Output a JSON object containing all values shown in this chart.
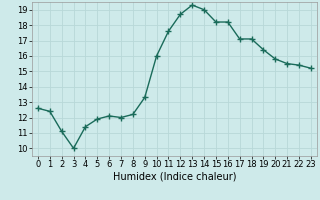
{
  "x": [
    0,
    1,
    2,
    3,
    4,
    5,
    6,
    7,
    8,
    9,
    10,
    11,
    12,
    13,
    14,
    15,
    16,
    17,
    18,
    19,
    20,
    21,
    22,
    23
  ],
  "y": [
    12.6,
    12.4,
    11.1,
    10.0,
    11.4,
    11.9,
    12.1,
    12.0,
    12.2,
    13.3,
    16.0,
    17.6,
    18.7,
    19.3,
    19.0,
    18.2,
    18.2,
    17.1,
    17.1,
    16.4,
    15.8,
    15.5,
    15.4,
    15.2
  ],
  "line_color": "#1a6b5a",
  "marker": "+",
  "marker_size": 4,
  "marker_linewidth": 1.0,
  "bg_color": "#ceeaea",
  "grid_color": "#b8d8d8",
  "xlabel": "Humidex (Indice chaleur)",
  "xlim": [
    -0.5,
    23.5
  ],
  "ylim": [
    9.5,
    19.5
  ],
  "yticks": [
    10,
    11,
    12,
    13,
    14,
    15,
    16,
    17,
    18,
    19
  ],
  "xticks": [
    0,
    1,
    2,
    3,
    4,
    5,
    6,
    7,
    8,
    9,
    10,
    11,
    12,
    13,
    14,
    15,
    16,
    17,
    18,
    19,
    20,
    21,
    22,
    23
  ],
  "tick_fontsize": 6,
  "xlabel_fontsize": 7,
  "linewidth": 1.0
}
